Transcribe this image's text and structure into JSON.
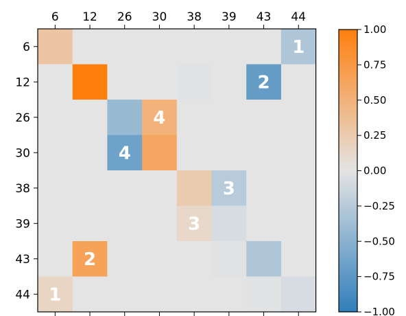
{
  "chart_data": {
    "type": "heatmap",
    "title": "",
    "xlabel": "",
    "ylabel": "",
    "x_labels": [
      "6",
      "12",
      "26",
      "30",
      "38",
      "39",
      "43",
      "44"
    ],
    "y_labels": [
      "6",
      "12",
      "26",
      "30",
      "38",
      "39",
      "43",
      "44"
    ],
    "x_axis_position": "top",
    "values": [
      [
        0.3,
        0.0,
        0.0,
        0.0,
        0.0,
        0.0,
        0.0,
        -0.3
      ],
      [
        0.0,
        1.0,
        0.0,
        0.0,
        -0.02,
        0.0,
        -0.7,
        0.0
      ],
      [
        0.0,
        0.0,
        -0.42,
        0.5,
        0.0,
        0.0,
        0.0,
        0.0
      ],
      [
        0.0,
        0.0,
        -0.65,
        0.62,
        0.0,
        0.0,
        0.0,
        0.0
      ],
      [
        0.0,
        0.0,
        0.0,
        0.0,
        0.25,
        -0.25,
        0.0,
        0.0
      ],
      [
        0.0,
        0.0,
        0.0,
        0.0,
        0.12,
        -0.08,
        0.0,
        0.0
      ],
      [
        0.0,
        0.65,
        0.0,
        0.0,
        0.0,
        -0.02,
        -0.3,
        0.0
      ],
      [
        0.15,
        0.0,
        0.0,
        0.0,
        0.0,
        0.0,
        -0.02,
        -0.08
      ]
    ],
    "cell_labels": [
      {
        "row": 0,
        "col": 7,
        "text": "1"
      },
      {
        "row": 1,
        "col": 6,
        "text": "2"
      },
      {
        "row": 2,
        "col": 3,
        "text": "4"
      },
      {
        "row": 3,
        "col": 2,
        "text": "4"
      },
      {
        "row": 4,
        "col": 5,
        "text": "3"
      },
      {
        "row": 5,
        "col": 4,
        "text": "3"
      },
      {
        "row": 6,
        "col": 1,
        "text": "2"
      },
      {
        "row": 7,
        "col": 0,
        "text": "1"
      }
    ],
    "colorbar": {
      "min": -1.0,
      "max": 1.0,
      "ticks": [
        "1.00",
        "0.75",
        "0.50",
        "0.25",
        "0.00",
        "−0.25",
        "−0.50",
        "−0.75",
        "−1.00"
      ],
      "tick_values": [
        1.0,
        0.75,
        0.5,
        0.25,
        0.0,
        -0.25,
        -0.5,
        -0.75,
        -1.0
      ],
      "colors": {
        "negative": "#2f7fba",
        "zero": "#e4e4e4",
        "positive": "#ff7f0e"
      }
    }
  }
}
